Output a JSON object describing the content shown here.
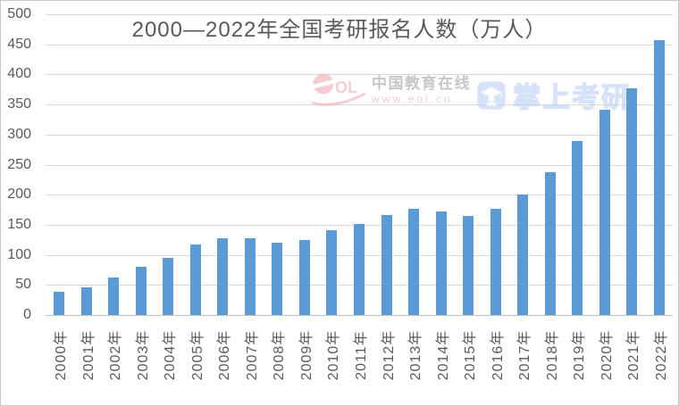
{
  "page": {
    "background": "#FFFFFF",
    "border_color": "#C9C9C9"
  },
  "chart_data": {
    "type": "bar",
    "title": "2000—2022年全国考研报名人数（万人）",
    "categories": [
      "2000年",
      "2001年",
      "2002年",
      "2003年",
      "2004年",
      "2005年",
      "2006年",
      "2007年",
      "2008年",
      "2009年",
      "2010年",
      "2011年",
      "2012年",
      "2013年",
      "2014年",
      "2015年",
      "2016年",
      "2017年",
      "2018年",
      "2019年",
      "2020年",
      "2021年",
      "2022年"
    ],
    "values": [
      39.2,
      46,
      62.4,
      79.7,
      94.5,
      117.2,
      127.1,
      128.2,
      120,
      124.6,
      140.6,
      151.1,
      165.6,
      176,
      172,
      164.9,
      177,
      201,
      238,
      290,
      341,
      377,
      457
    ],
    "xlabel": "",
    "ylabel": "",
    "ylim": [
      0,
      500
    ],
    "ytick_step": 50,
    "grid": true,
    "legend_position": "none",
    "bar_color": "#5B9BD5",
    "gridline_color": "#D9D9D9",
    "axis_line_color": "#BFBFBF",
    "tick_label_color": "#595959",
    "title_color": "#595959"
  },
  "watermarks": {
    "eol": {
      "logo_letters": "OL",
      "site_name": "中国教育在线",
      "site_url": "www.eol.cn",
      "brand_color": "#ED9CA3",
      "text_color": "#8F8F8F"
    },
    "zhangshang": {
      "label": "掌上考研",
      "brand_color": "#B5CCF2"
    }
  }
}
